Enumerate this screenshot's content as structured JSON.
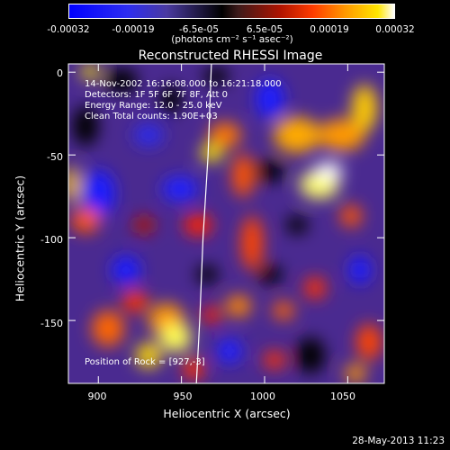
{
  "colorbar": {
    "ticks": [
      "-0.00032",
      "-0.00019",
      "-6.5e-05",
      "6.5e-05",
      "0.00019",
      "0.00032"
    ],
    "unit": "(photons cm⁻² s⁻¹ asec⁻²)",
    "colors": [
      "#0000ff",
      "#4a3aa0",
      "#000000",
      "#b01400",
      "#ff9900",
      "#ffffff"
    ]
  },
  "chart_data": {
    "type": "heatmap",
    "title": "Reconstructed RHESSI Image",
    "xlabel": "Heliocentric X (arcsec)",
    "ylabel": "Heliocentric Y (arcsec)",
    "xlim": [
      882,
      1072
    ],
    "ylim": [
      -188,
      5
    ],
    "xticks": [
      "900",
      "950",
      "1000",
      "1050"
    ],
    "yticks": [
      "0",
      "-50",
      "-100",
      "-150"
    ],
    "limb_curve": {
      "x": [
        959,
        961,
        963,
        966,
        968
      ],
      "y": [
        -188,
        -150,
        -100,
        -50,
        5
      ]
    },
    "annotations": {
      "time": "14-Nov-2002 16:16:08.000 to 16:21:18.000",
      "detectors": "Detectors: 1F 5F 6F 7F 8F, Att 0",
      "energy": "Energy Range: 12.0 - 25.0 keV",
      "clean": "Clean     Total counts: 1.90E+03",
      "rock": "Position of Rock = [927,-3]"
    }
  },
  "footer": {
    "date": "28-May-2013 11:23"
  }
}
